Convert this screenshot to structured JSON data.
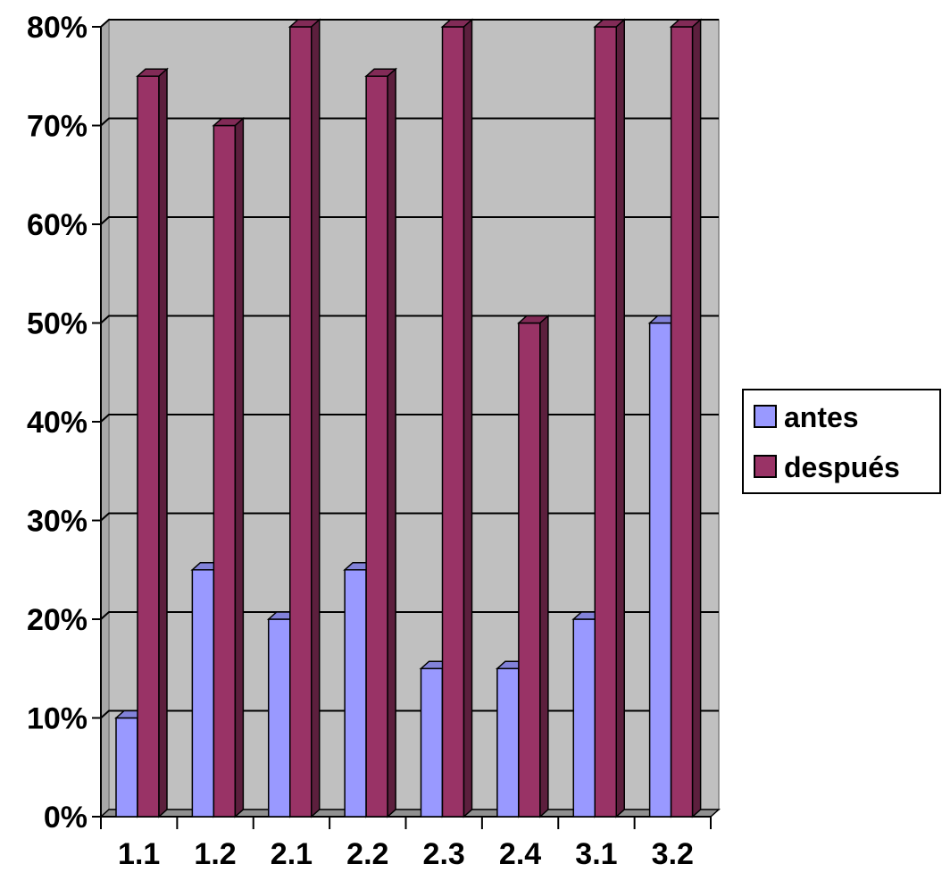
{
  "chart_data": {
    "type": "bar",
    "style": "3d-clustered-column",
    "categories": [
      "1.1",
      "1.2",
      "2.1",
      "2.2",
      "2.3",
      "2.4",
      "3.1",
      "3.2"
    ],
    "series": [
      {
        "name": "antes",
        "color": "#9999ff",
        "values": [
          10,
          25,
          20,
          25,
          15,
          15,
          20,
          50
        ]
      },
      {
        "name": "después",
        "color": "#993366",
        "values": [
          75,
          70,
          80,
          75,
          80,
          50,
          80,
          80
        ]
      }
    ],
    "y_ticks": [
      "0%",
      "10%",
      "20%",
      "30%",
      "40%",
      "50%",
      "60%",
      "70%",
      "80%"
    ],
    "ylim": [
      0,
      80
    ],
    "grid": true,
    "plot_background": "#c0c0c0",
    "legend_position": "right",
    "title": "",
    "xlabel": "",
    "ylabel": ""
  }
}
